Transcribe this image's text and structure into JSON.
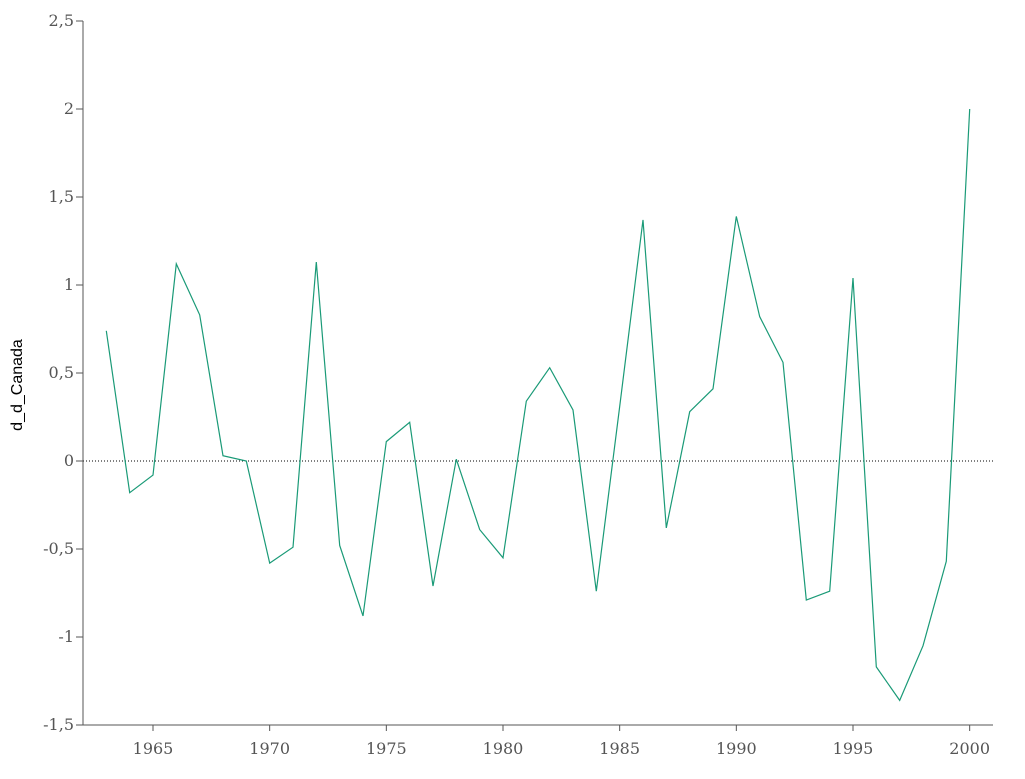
{
  "chart_data": {
    "type": "line",
    "title": "",
    "xlabel": "",
    "ylabel": "d_d_Canada",
    "xlim": [
      1962,
      2001
    ],
    "ylim": [
      -1.5,
      2.5
    ],
    "grid": false,
    "legend": "none",
    "line_color": "#1a9a77",
    "zero_line": {
      "y": 0,
      "style": "dotted",
      "color": "#000000"
    },
    "x_ticks": [
      1965,
      1970,
      1975,
      1980,
      1985,
      1990,
      1995,
      2000
    ],
    "x_tick_labels": [
      "1965",
      "1970",
      "1975",
      "1980",
      "1985",
      "1990",
      "1995",
      "2000"
    ],
    "y_ticks": [
      -1.5,
      -1,
      -0.5,
      0,
      0.5,
      1,
      1.5,
      2,
      2.5
    ],
    "y_tick_labels": [
      "-1,5",
      "-1",
      "-0,5",
      "0",
      "0,5",
      "1",
      "1,5",
      "2",
      "2,5"
    ],
    "series": [
      {
        "x": [
          1963,
          1964,
          1965,
          1966,
          1967,
          1968,
          1969,
          1970,
          1971,
          1972,
          1973,
          1974,
          1975,
          1976,
          1977,
          1978,
          1979,
          1980,
          1981,
          1982,
          1983,
          1984,
          1985,
          1986,
          1987,
          1988,
          1989,
          1990,
          1991,
          1992,
          1993,
          1994,
          1995,
          1996,
          1997,
          1998,
          1999,
          2000
        ],
        "values": [
          0.74,
          -0.18,
          -0.08,
          1.12,
          0.83,
          0.03,
          0.0,
          -0.58,
          -0.49,
          1.13,
          -0.48,
          -0.88,
          0.11,
          0.22,
          -0.71,
          0.01,
          -0.39,
          -0.55,
          0.34,
          0.53,
          0.29,
          -0.74,
          0.31,
          1.37,
          -0.38,
          0.28,
          0.41,
          1.39,
          0.82,
          0.56,
          -0.79,
          -0.74,
          1.04,
          -1.17,
          -1.36,
          -1.05,
          -0.57,
          2.0
        ]
      }
    ]
  }
}
